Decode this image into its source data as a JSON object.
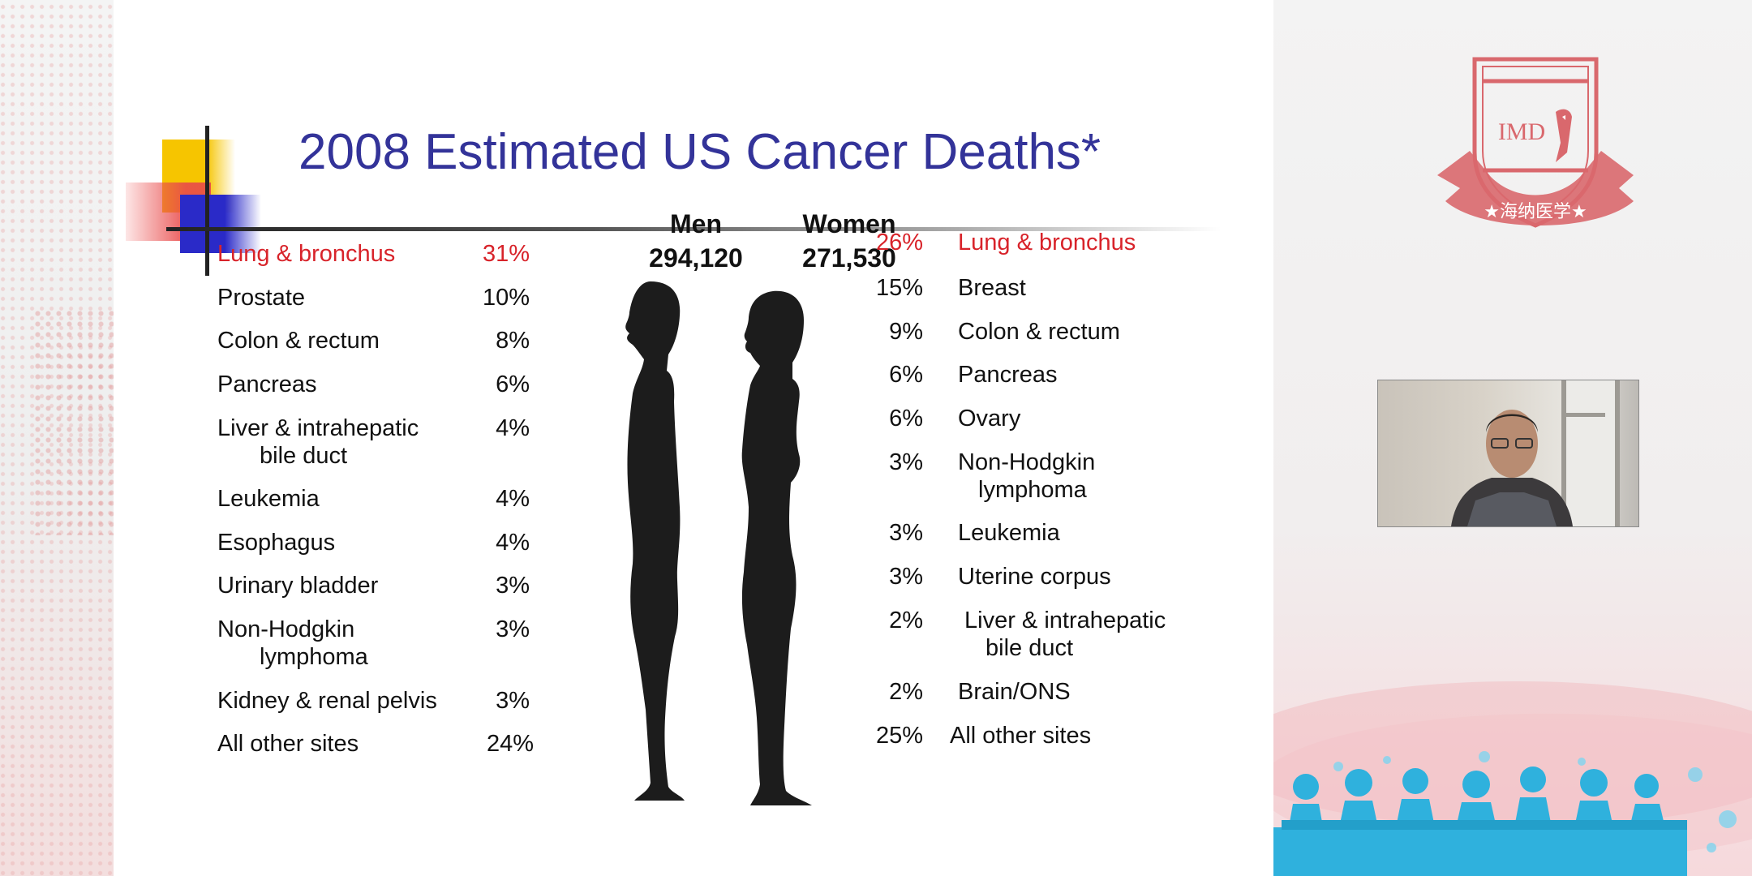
{
  "slide": {
    "title": "2008 Estimated US Cancer Deaths*",
    "men": {
      "label": "Men",
      "total": "294,120"
    },
    "women": {
      "label": "Women",
      "total": "271,530"
    },
    "men_rows": [
      {
        "site": "Lung & bronchus",
        "site2": "",
        "pct": "31%",
        "highlight": true
      },
      {
        "site": "Prostate",
        "site2": "",
        "pct": "10%",
        "highlight": false
      },
      {
        "site": "Colon & rectum",
        "site2": "",
        "pct": "8%",
        "highlight": false
      },
      {
        "site": "Pancreas",
        "site2": "",
        "pct": "6%",
        "highlight": false
      },
      {
        "site": "Liver & intrahepatic",
        "site2": "bile duct",
        "pct": "4%",
        "highlight": false
      },
      {
        "site": "Leukemia",
        "site2": "",
        "pct": "4%",
        "highlight": false
      },
      {
        "site": "Esophagus",
        "site2": "",
        "pct": "4%",
        "highlight": false
      },
      {
        "site": "Urinary bladder",
        "site2": "",
        "pct": "3%",
        "highlight": false
      },
      {
        "site": "Non-Hodgkin",
        "site2": "lymphoma",
        "pct": "3%",
        "highlight": false
      },
      {
        "site": "Kidney & renal pelvis",
        "site2": "",
        "pct": "3%",
        "highlight": false
      },
      {
        "site": "All other sites",
        "site2": "",
        "pct": "24%",
        "highlight": false
      }
    ],
    "women_rows": [
      {
        "site": "Lung & bronchus",
        "site2": "",
        "pct": "26%",
        "highlight": true
      },
      {
        "site": "Breast",
        "site2": "",
        "pct": "15%",
        "highlight": false
      },
      {
        "site": "Colon & rectum",
        "site2": "",
        "pct": "9%",
        "highlight": false
      },
      {
        "site": "Pancreas",
        "site2": "",
        "pct": "6%",
        "highlight": false
      },
      {
        "site": "Ovary",
        "site2": "",
        "pct": "6%",
        "highlight": false
      },
      {
        "site": "Non-Hodgkin",
        "site2": "lymphoma",
        "pct": "3%",
        "highlight": false
      },
      {
        "site": "Leukemia",
        "site2": "",
        "pct": "3%",
        "highlight": false
      },
      {
        "site": "Uterine corpus",
        "site2": "",
        "pct": "3%",
        "highlight": false
      },
      {
        "site": "Liver & intrahepatic",
        "site2": "bile duct",
        "pct": "2%",
        "highlight": false
      },
      {
        "site": "Brain/ONS",
        "site2": "",
        "pct": "2%",
        "highlight": false
      },
      {
        "site": "All other sites",
        "site2": "",
        "pct": "25%",
        "highlight": false
      }
    ]
  },
  "branding": {
    "logo_text": "IMD",
    "logo_subtitle": "★海纳医学★"
  },
  "colors": {
    "title": "#333399",
    "highlight": "#d8232a",
    "logo": "#d9686d",
    "audience": "#2fb1dd"
  },
  "icons": {
    "men_silhouette": "male-profile-silhouette",
    "women_silhouette": "female-profile-silhouette",
    "logo": "shield-bird-emblem",
    "webcam": "presenter-video-feed",
    "audience": "audience-silhouette-banner"
  }
}
